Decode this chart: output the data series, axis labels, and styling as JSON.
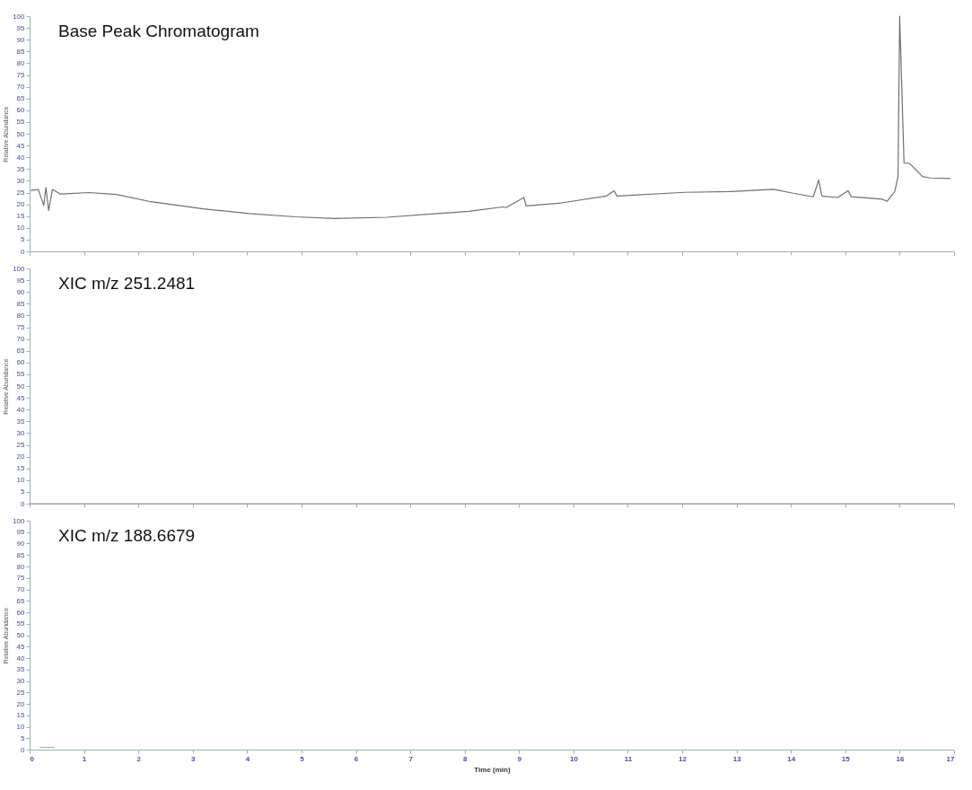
{
  "chart_data": [
    {
      "type": "line",
      "title": "Base Peak Chromatogram",
      "ylabel": "Relative Abundance",
      "xlim": [
        0,
        17
      ],
      "xticks": [
        0,
        1,
        2,
        3,
        4,
        5,
        6,
        7,
        8,
        9,
        10,
        11,
        12,
        13,
        14,
        15,
        16,
        17
      ],
      "ylim": [
        0,
        100
      ],
      "yticks": [
        0,
        5,
        10,
        15,
        20,
        25,
        30,
        35,
        40,
        45,
        50,
        55,
        60,
        65,
        70,
        75,
        80,
        85,
        90,
        95,
        100
      ],
      "tick_labels": "y",
      "series": [
        {
          "color": "#707070",
          "x": [
            0.02,
            0.16,
            0.26,
            0.3,
            0.35,
            0.42,
            0.56,
            1.1,
            1.6,
            2.23,
            3.19,
            4.03,
            4.88,
            5.62,
            6.58,
            7.43,
            8.08,
            8.7,
            8.76,
            9.09,
            9.13,
            9.78,
            10.6,
            10.75,
            10.8,
            12.04,
            12.89,
            13.68,
            14.02,
            14.41,
            14.51,
            14.57,
            14.86,
            15.05,
            15.11,
            15.68,
            15.77,
            15.91,
            15.97,
            16.0,
            16.06,
            16.08,
            16.16,
            16.2,
            16.42,
            16.56,
            16.93
          ],
          "values": [
            25.9,
            26.3,
            19.5,
            27.2,
            17.4,
            26.3,
            24.4,
            25.0,
            24.2,
            21.1,
            18.1,
            16.1,
            14.7,
            14.0,
            14.5,
            16.0,
            17.0,
            18.9,
            18.6,
            22.9,
            19.3,
            20.6,
            23.5,
            25.8,
            23.5,
            25.1,
            25.4,
            26.4,
            24.8,
            23.2,
            30.3,
            23.5,
            22.9,
            25.8,
            23.2,
            22.2,
            21.3,
            25.4,
            31.8,
            100,
            53.5,
            37.5,
            37.5,
            37.0,
            31.8,
            31.2,
            31.0
          ]
        }
      ]
    },
    {
      "type": "line",
      "title": "XIC m/z 251.2481",
      "ylabel": "Relative Abundance",
      "xlim": [
        0,
        17
      ],
      "xticks": [
        0,
        1,
        2,
        3,
        4,
        5,
        6,
        7,
        8,
        9,
        10,
        11,
        12,
        13,
        14,
        15,
        16,
        17
      ],
      "ylim": [
        0,
        100
      ],
      "yticks": [
        0,
        5,
        10,
        15,
        20,
        25,
        30,
        35,
        40,
        45,
        50,
        55,
        60,
        65,
        70,
        75,
        80,
        85,
        90,
        95,
        100
      ],
      "tick_labels": "y",
      "series": [
        {
          "color": "#c08a8a",
          "x": [
            0,
            17
          ],
          "values": [
            0,
            0
          ]
        }
      ]
    },
    {
      "type": "line",
      "title": "XIC m/z 188.6679",
      "ylabel": "Relative Abundance",
      "xlabel": "Time (min)",
      "xlim": [
        0,
        17
      ],
      "xticks": [
        0,
        1,
        2,
        3,
        4,
        5,
        6,
        7,
        8,
        9,
        10,
        11,
        12,
        13,
        14,
        15,
        16,
        17
      ],
      "ylim": [
        0,
        100
      ],
      "yticks": [
        0,
        5,
        10,
        15,
        20,
        25,
        30,
        35,
        40,
        45,
        50,
        55,
        60,
        65,
        70,
        75,
        80,
        85,
        90,
        95,
        100
      ],
      "series": [
        {
          "color": "#b0b0b0",
          "x": [
            0.18,
            0.46
          ],
          "values": [
            1,
            1
          ]
        }
      ]
    }
  ]
}
